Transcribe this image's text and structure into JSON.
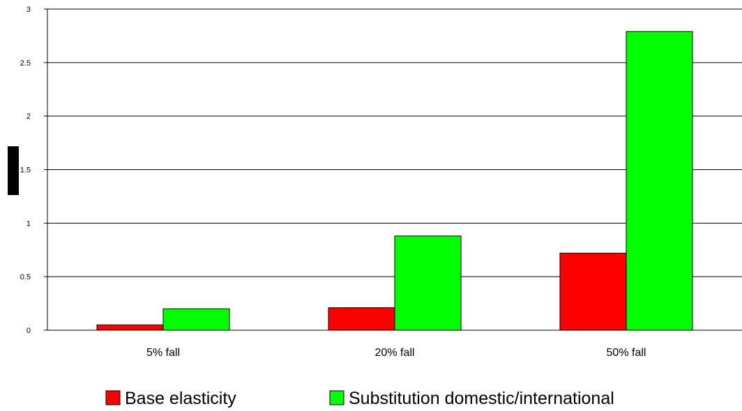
{
  "chart_data": {
    "type": "bar",
    "categories": [
      "5% fall",
      "20% fall",
      "50% fall"
    ],
    "series": [
      {
        "name": "Base elasticity",
        "values": [
          0.05,
          0.21,
          0.72
        ],
        "color": "#ff0000"
      },
      {
        "name": "Substitution domestic/international",
        "values": [
          0.2,
          0.88,
          2.79
        ],
        "color": "#00ff00"
      }
    ],
    "ylim": [
      0,
      3
    ],
    "yticks": [
      "0",
      "0.5",
      "1",
      "1.5",
      "2",
      "2.5",
      "3"
    ],
    "ytick_values": [
      0,
      0.5,
      1,
      1.5,
      2,
      2.5,
      3
    ],
    "grid": true,
    "legend_position": "bottom",
    "colors": {
      "axis": "#000000",
      "grid": "#000000",
      "bar_border": "#000000",
      "ylabel_box": "#000000"
    }
  }
}
